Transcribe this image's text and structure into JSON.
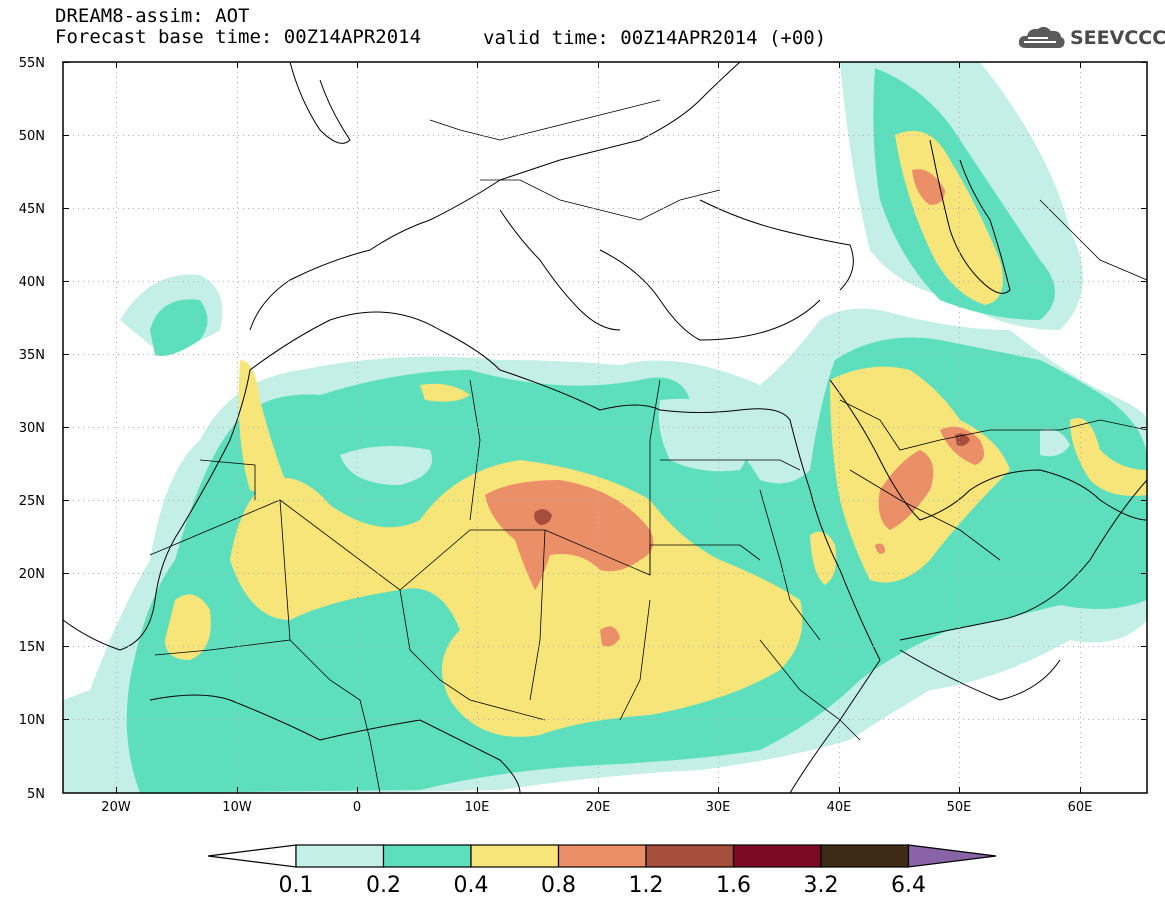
{
  "header": {
    "title_line1": "DREAM8-assim: AOT",
    "title_line2_left": "Forecast base time: 00Z14APR2014",
    "title_line2_right": "valid time: 00Z14APR2014 (+00)"
  },
  "logo": {
    "text": "SEEVCCC",
    "icon": "cloud-icon"
  },
  "map": {
    "lat_labels": [
      "55N",
      "50N",
      "45N",
      "40N",
      "35N",
      "30N",
      "25N",
      "20N",
      "15N",
      "10N",
      "5N"
    ],
    "lon_labels": [
      "20W",
      "10W",
      "0",
      "10E",
      "20E",
      "30E",
      "40E",
      "50E",
      "60E"
    ],
    "lat_range": [
      5,
      55
    ],
    "lon_range": [
      -25,
      65
    ],
    "grid": "dotted"
  },
  "colorbar": {
    "labels": [
      "0.1",
      "0.2",
      "0.4",
      "0.8",
      "1.2",
      "1.6",
      "3.2",
      "6.4"
    ],
    "colors": [
      "#ffffff",
      "#c3efe6",
      "#5ddfbd",
      "#f7e57a",
      "#ea8f68",
      "#a54e3c",
      "#7c0a24",
      "#3d2a17",
      "#8a63a6"
    ]
  },
  "colors": {
    "level_01": "#c3efe6",
    "level_02": "#5ddfbd",
    "level_04": "#f7e57a",
    "level_08": "#ea8f68",
    "level_12": "#a54e3c"
  }
}
